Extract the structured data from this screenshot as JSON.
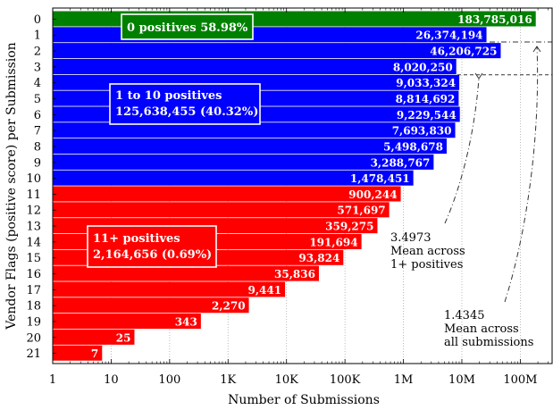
{
  "chart_data": {
    "type": "bar",
    "orientation": "horizontal",
    "xlabel": "Number of Submissions",
    "ylabel": "Vendor Flags (positive score) per Submission",
    "x_scale": "log",
    "xlim": [
      1,
      350000000
    ],
    "x_ticks": [
      1,
      10,
      100,
      1000,
      10000,
      100000,
      1000000,
      10000000,
      100000000
    ],
    "x_tick_labels": [
      "1",
      "10",
      "100",
      "1K",
      "10K",
      "100K",
      "1M",
      "10M",
      "100M"
    ],
    "grid": "x-major dotted",
    "categories": [
      "0",
      "1",
      "2",
      "3",
      "4",
      "5",
      "6",
      "7",
      "8",
      "9",
      "10",
      "11",
      "12",
      "13",
      "14",
      "15",
      "16",
      "17",
      "18",
      "19",
      "20",
      "21"
    ],
    "values": [
      183785016,
      26374194,
      46206725,
      8020250,
      9033324,
      8814692,
      9229544,
      7693830,
      5498678,
      3288767,
      1478451,
      900244,
      571697,
      359275,
      191694,
      93824,
      35836,
      9441,
      2270,
      343,
      25,
      7
    ],
    "value_labels": [
      "183,785,016",
      "26,374,194",
      "46,206,725",
      "8,020,250",
      "9,033,324",
      "8,814,692",
      "9,229,544",
      "7,693,830",
      "5,498,678",
      "3,288,767",
      "1,478,451",
      "900,244",
      "571,697",
      "359,275",
      "191,694",
      "93,824",
      "35,836",
      "9,441",
      "2,270",
      "343",
      "25",
      "7"
    ],
    "colors": {
      "zero": "#008000",
      "one_to_ten": "#0000ff",
      "eleven_plus": "#ff0000"
    },
    "groups": [
      {
        "lines": [
          "0 positives 58.98%"
        ],
        "color": "#008000"
      },
      {
        "lines": [
          "1 to 10 positives",
          "125,638,455 (40.32%)"
        ],
        "color": "#0000ff"
      },
      {
        "lines": [
          "11+ positives",
          "2,164,656 (0.69%)"
        ],
        "color": "#ff0000"
      }
    ],
    "reference_lines": [
      {
        "value": 3.4973,
        "label_lines": [
          "3.4973",
          "Mean across",
          "1+ positives"
        ],
        "style": "dashed"
      },
      {
        "value": 1.4345,
        "label_lines": [
          "1.4345",
          "Mean across",
          "all submissions"
        ],
        "style": "dashdot"
      }
    ]
  }
}
